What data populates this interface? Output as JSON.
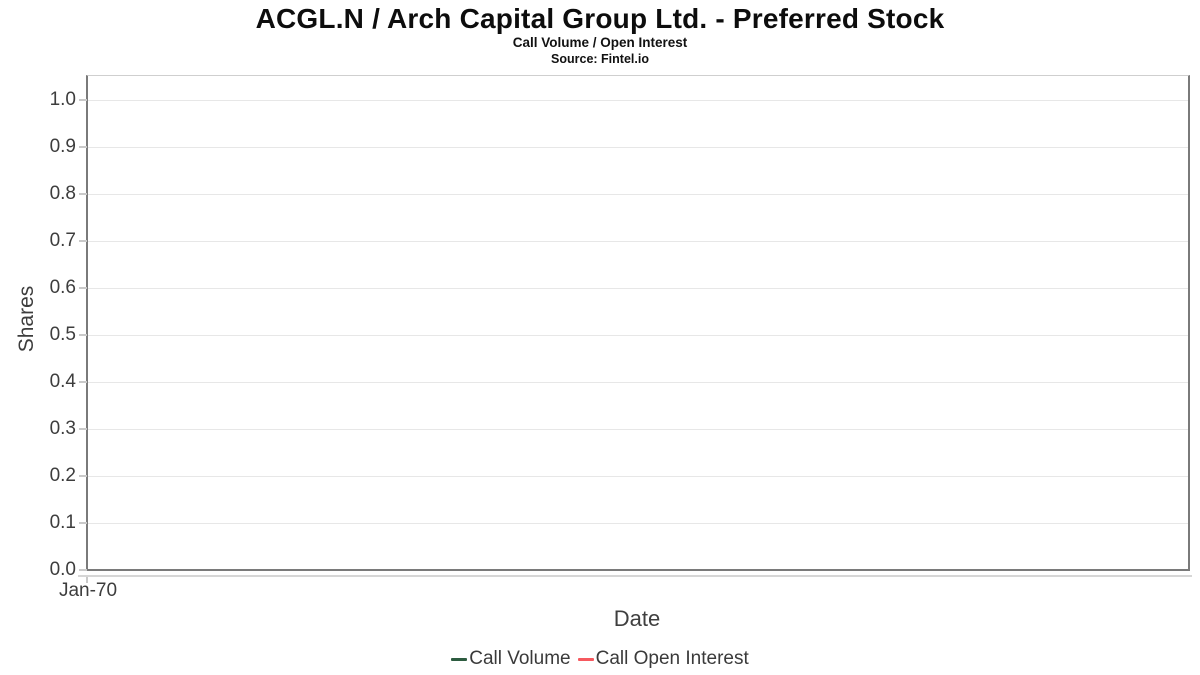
{
  "header": {
    "title": "ACGL.N / Arch Capital Group Ltd. - Preferred Stock",
    "subtitle": "Call Volume / Open Interest",
    "source": "Source: Fintel.io"
  },
  "chart_data": {
    "type": "line",
    "title": "ACGL.N / Arch Capital Group Ltd. - Preferred Stock",
    "subtitle": "Call Volume / Open Interest",
    "source": "Source: Fintel.io",
    "xlabel": "Date",
    "ylabel": "Shares",
    "ylim": [
      0.0,
      1.05
    ],
    "yticks": [
      0.0,
      0.1,
      0.2,
      0.3,
      0.4,
      0.5,
      0.6,
      0.7,
      0.8,
      0.9,
      1.0
    ],
    "ytick_labels": [
      "0.0",
      "0.1",
      "0.2",
      "0.3",
      "0.4",
      "0.5",
      "0.6",
      "0.7",
      "0.8",
      "0.9",
      "1.0"
    ],
    "xtick_labels": [
      "Jan-70"
    ],
    "grid": true,
    "legend_position": "bottom-center",
    "series": [
      {
        "name": "Call Volume",
        "color": "#2d5c40",
        "x": [],
        "values": []
      },
      {
        "name": "Call Open Interest",
        "color": "#f6595f",
        "x": [],
        "values": []
      }
    ]
  }
}
